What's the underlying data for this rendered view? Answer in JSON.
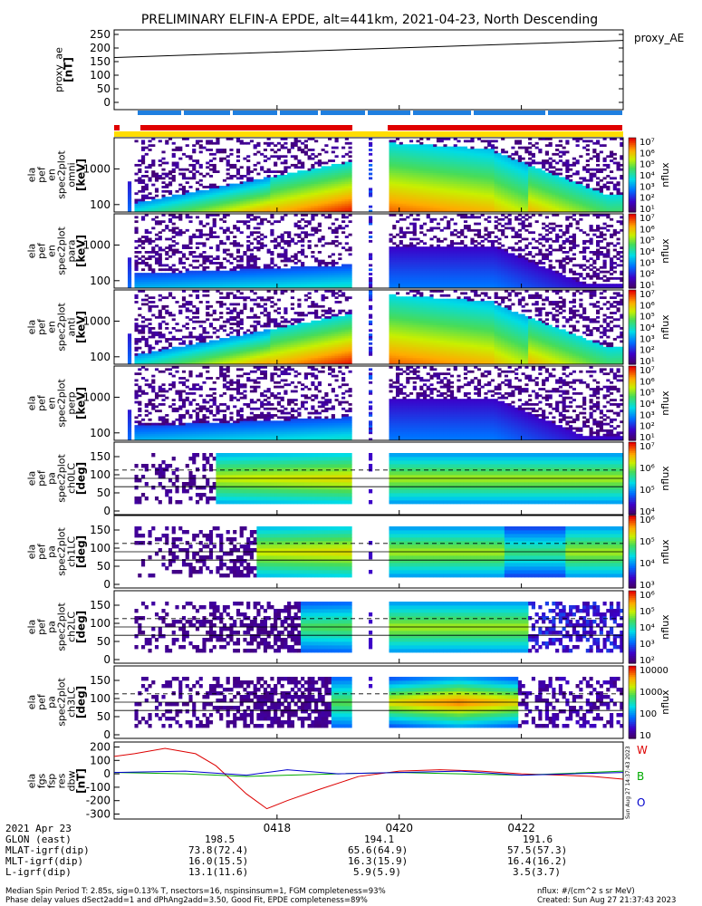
{
  "title": "PRELIMINARY ELFIN-A EPDE, alt=441km, 2021-04-23, North Descending",
  "colors": {
    "trace_ae": "#000000",
    "fgs_w": "#dd0000",
    "fgs_b": "#00aa00",
    "fgs_o": "#0000cc",
    "bar_red": "#e00000",
    "bar_blue": "#1f7fe0",
    "bar_yellow": "#ffdd00"
  },
  "proxy_ae": {
    "ylabel": [
      "proxy_ae",
      "[nT]"
    ],
    "yticks": [
      "250",
      "200",
      "150",
      "100",
      "50",
      "0"
    ],
    "legend": "proxy_AE"
  },
  "spec_panels": [
    {
      "ylabel": [
        "ela",
        "pef",
        "en",
        "spec2plot",
        "omni",
        "[keV]"
      ],
      "yticks": [
        "1000",
        "100"
      ],
      "cbar_ticks": [
        "10⁷",
        "10⁶",
        "10⁵",
        "10⁴",
        "10³",
        "10²",
        "10¹"
      ],
      "cbar_label": "nflux"
    },
    {
      "ylabel": [
        "ela",
        "pef",
        "en",
        "spec2plot",
        "para",
        "[keV]"
      ],
      "yticks": [
        "1000",
        "100"
      ],
      "cbar_ticks": [
        "10⁷",
        "10⁶",
        "10⁵",
        "10⁴",
        "10³",
        "10²",
        "10¹"
      ],
      "cbar_label": "nflux"
    },
    {
      "ylabel": [
        "ela",
        "pef",
        "en",
        "spec2plot",
        "anti",
        "[keV]"
      ],
      "yticks": [
        "1000",
        "100"
      ],
      "cbar_ticks": [
        "10⁷",
        "10⁶",
        "10⁵",
        "10⁴",
        "10³",
        "10²",
        "10¹"
      ],
      "cbar_label": "nflux"
    },
    {
      "ylabel": [
        "ela",
        "pef",
        "en",
        "spec2plot",
        "perp",
        "[keV]"
      ],
      "yticks": [
        "1000",
        "100"
      ],
      "cbar_ticks": [
        "10⁷",
        "10⁶",
        "10⁵",
        "10⁴",
        "10³",
        "10²",
        "10¹"
      ],
      "cbar_label": "nflux"
    }
  ],
  "pa_panels": [
    {
      "ylabel": [
        "ela",
        "pef",
        "pa",
        "spec2plot",
        "ch0LC",
        "[deg]"
      ],
      "yticks": [
        "150",
        "100",
        "50",
        "0"
      ],
      "cbar_ticks": [
        "10⁷",
        "10⁶",
        "10⁵",
        "10⁴"
      ],
      "cbar_label": "nflux"
    },
    {
      "ylabel": [
        "ela",
        "pef",
        "pa",
        "spec2plot",
        "ch1LC",
        "[deg]"
      ],
      "yticks": [
        "150",
        "100",
        "50",
        "0"
      ],
      "cbar_ticks": [
        "10⁶",
        "10⁵",
        "10⁴",
        "10³"
      ],
      "cbar_label": "nflux"
    },
    {
      "ylabel": [
        "ela",
        "pef",
        "pa",
        "spec2plot",
        "ch2LC",
        "[deg]"
      ],
      "yticks": [
        "150",
        "100",
        "50",
        "0"
      ],
      "cbar_ticks": [
        "10⁶",
        "10⁵",
        "10⁴",
        "10³",
        "10²"
      ],
      "cbar_label": "nflux"
    },
    {
      "ylabel": [
        "ela",
        "pef",
        "pa",
        "spec2plot",
        "ch3LC",
        "[deg]"
      ],
      "yticks": [
        "150",
        "100",
        "50",
        "0"
      ],
      "cbar_ticks": [
        "10000",
        "1000",
        "100",
        "10"
      ],
      "cbar_label": "nflux"
    }
  ],
  "fgs": {
    "ylabel": [
      "ela",
      "fgs",
      "fsp",
      "res",
      "dbw",
      "[nT]"
    ],
    "yticks": [
      "200",
      "100",
      "0",
      "-100",
      "-200",
      "-300"
    ],
    "legend": [
      "W",
      "B",
      "O"
    ],
    "stamp": "Sun Aug 27 14:37:43 2023"
  },
  "xaxis": {
    "ticks": [
      "0418",
      "0420",
      "0422"
    ]
  },
  "info_rows": [
    {
      "label": "2021 Apr 23",
      "values": [
        "",
        "",
        ""
      ]
    },
    {
      "label": "GLON (east)",
      "values": [
        "198.5",
        "194.1",
        "191.6"
      ]
    },
    {
      "label": "MLAT-igrf(dip)",
      "values": [
        "73.8(72.4)",
        "65.6(64.9)",
        "57.5(57.3)"
      ]
    },
    {
      "label": "MLT-igrf(dip)",
      "values": [
        "16.0(15.5)",
        "16.3(15.9)",
        "16.4(16.2)"
      ]
    },
    {
      "label": "L-igrf(dip)",
      "values": [
        "13.1(11.6)",
        "5.9(5.9)",
        "3.5(3.7)"
      ]
    }
  ],
  "footer": {
    "line1": "Median Spin Period T: 2.85s, sig=0.13% T, nsectors=16, nspinsinsum=1, FGM completeness=93%",
    "line2": "Phase delay values dSect2add=1 and dPhAng2add=3.50, Good Fit, EPDE completeness=89%",
    "units": "nflux: #/(cm^2 s sr MeV)",
    "created": "Created: Sun Aug 27 21:37:43 2023"
  },
  "chart_data": [
    {
      "type": "line",
      "title": "PRELIMINARY ELFIN-A EPDE, alt=441km, 2021-04-23, North Descending",
      "ylabel": "proxy_ae [nT]",
      "ylim": [
        0,
        260
      ],
      "x_ticks": [
        "0418",
        "0420",
        "0422"
      ],
      "series": [
        {
          "name": "proxy_AE",
          "x": [
            "04:15:20",
            "04:23:40"
          ],
          "values": [
            165,
            228
          ]
        }
      ]
    },
    {
      "type": "heatmap",
      "panels": [
        "omni",
        "para",
        "anti",
        "perp"
      ],
      "ylabel": "energy [keV]",
      "yscale": "log",
      "ylim": [
        60,
        7000
      ],
      "colorbar": "nflux, log scale 10¹–10⁷"
    },
    {
      "type": "heatmap",
      "panels": [
        "ch0LC",
        "ch1LC",
        "ch2LC",
        "ch3LC"
      ],
      "ylabel": "pitch angle [deg]",
      "ylim": [
        0,
        180
      ],
      "colorbar": "nflux, log scale"
    },
    {
      "type": "line",
      "ylabel": "ela fgs fsp res dbw [nT]",
      "ylim": [
        -320,
        220
      ],
      "series": [
        {
          "name": "W",
          "x": [
            "04:15:20",
            "04:15:40",
            "04:16:10",
            "04:16:40",
            "04:17:00",
            "04:17:30",
            "04:17:50",
            "04:18:10",
            "04:18:40",
            "04:19:20",
            "04:20:00",
            "04:20:40",
            "04:21:20",
            "04:22:00",
            "04:22:40",
            "04:23:10",
            "04:23:40"
          ],
          "values": [
            130,
            150,
            190,
            150,
            60,
            -150,
            -260,
            -200,
            -120,
            -20,
            20,
            30,
            20,
            0,
            -10,
            -20,
            -40
          ]
        },
        {
          "name": "B",
          "x": [
            "04:15:20",
            "04:16:30",
            "04:17:30",
            "04:18:10",
            "04:19:00",
            "04:20:00",
            "04:21:00",
            "04:22:00",
            "04:23:40"
          ],
          "values": [
            10,
            0,
            -20,
            -10,
            0,
            10,
            0,
            -10,
            20
          ]
        },
        {
          "name": "O",
          "x": [
            "04:15:20",
            "04:16:30",
            "04:17:30",
            "04:18:10",
            "04:19:00",
            "04:20:00",
            "04:21:00",
            "04:22:00",
            "04:23:40"
          ],
          "values": [
            10,
            20,
            -10,
            30,
            0,
            10,
            20,
            -10,
            10
          ]
        }
      ]
    }
  ]
}
